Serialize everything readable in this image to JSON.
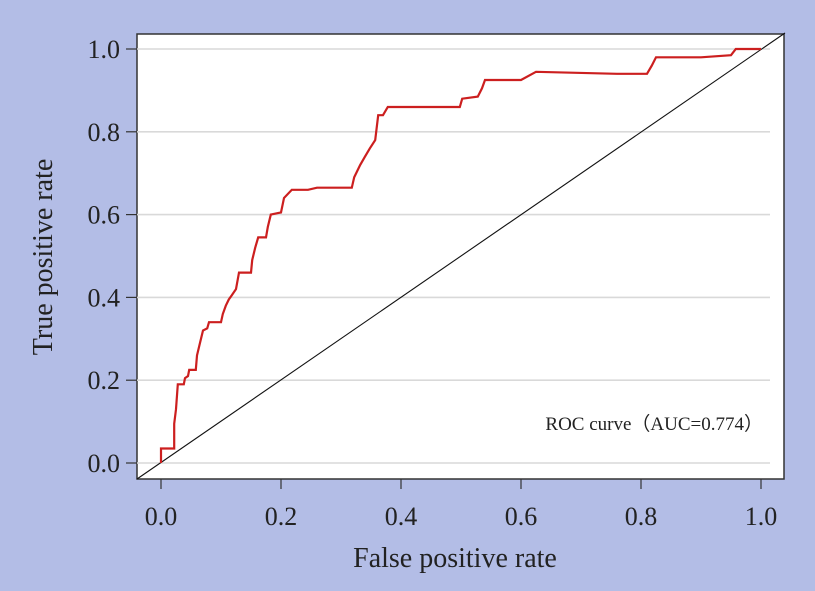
{
  "chart_data": {
    "type": "line",
    "title": "",
    "xlabel": "False positive rate",
    "ylabel": "True positive rate",
    "xlim": [
      0.0,
      1.0
    ],
    "ylim": [
      0.0,
      1.0
    ],
    "xticks": [
      "0.0",
      "0.2",
      "0.4",
      "0.6",
      "0.8",
      "1.0"
    ],
    "yticks": [
      "0.0",
      "0.2",
      "0.4",
      "0.6",
      "0.8",
      "1.0"
    ],
    "grid": "horizontal",
    "annotation": "ROC curve（AUC=0.774）",
    "colors": {
      "roc": "#cc1f1f",
      "diagonal": "#111111",
      "background": "#b3bde6",
      "grid": "#d9d9d9"
    },
    "series": [
      {
        "values": [
          [
            0.0,
            0.0
          ],
          [
            0.0,
            0.035
          ],
          [
            0.022,
            0.035
          ],
          [
            0.022,
            0.095
          ],
          [
            0.025,
            0.13
          ],
          [
            0.028,
            0.19
          ],
          [
            0.038,
            0.19
          ],
          [
            0.04,
            0.205
          ],
          [
            0.045,
            0.21
          ],
          [
            0.047,
            0.225
          ],
          [
            0.058,
            0.225
          ],
          [
            0.06,
            0.26
          ],
          [
            0.065,
            0.29
          ],
          [
            0.07,
            0.32
          ],
          [
            0.077,
            0.325
          ],
          [
            0.08,
            0.34
          ],
          [
            0.1,
            0.34
          ],
          [
            0.103,
            0.36
          ],
          [
            0.108,
            0.38
          ],
          [
            0.113,
            0.395
          ],
          [
            0.118,
            0.405
          ],
          [
            0.125,
            0.42
          ],
          [
            0.13,
            0.46
          ],
          [
            0.15,
            0.46
          ],
          [
            0.152,
            0.49
          ],
          [
            0.157,
            0.52
          ],
          [
            0.162,
            0.545
          ],
          [
            0.175,
            0.545
          ],
          [
            0.178,
            0.57
          ],
          [
            0.183,
            0.6
          ],
          [
            0.2,
            0.605
          ],
          [
            0.205,
            0.64
          ],
          [
            0.218,
            0.66
          ],
          [
            0.245,
            0.66
          ],
          [
            0.26,
            0.665
          ],
          [
            0.318,
            0.665
          ],
          [
            0.322,
            0.69
          ],
          [
            0.332,
            0.72
          ],
          [
            0.34,
            0.74
          ],
          [
            0.348,
            0.76
          ],
          [
            0.357,
            0.78
          ],
          [
            0.362,
            0.84
          ],
          [
            0.37,
            0.84
          ],
          [
            0.378,
            0.86
          ],
          [
            0.43,
            0.86
          ],
          [
            0.498,
            0.86
          ],
          [
            0.502,
            0.88
          ],
          [
            0.528,
            0.885
          ],
          [
            0.535,
            0.905
          ],
          [
            0.54,
            0.925
          ],
          [
            0.6,
            0.925
          ],
          [
            0.625,
            0.945
          ],
          [
            0.76,
            0.94
          ],
          [
            0.81,
            0.94
          ],
          [
            0.818,
            0.96
          ],
          [
            0.825,
            0.98
          ],
          [
            0.9,
            0.98
          ],
          [
            0.95,
            0.985
          ],
          [
            0.958,
            1.0
          ],
          [
            1.0,
            1.0
          ]
        ]
      },
      {
        "values": [
          [
            0.0,
            0.0
          ],
          [
            1.0,
            1.0
          ]
        ]
      }
    ]
  }
}
